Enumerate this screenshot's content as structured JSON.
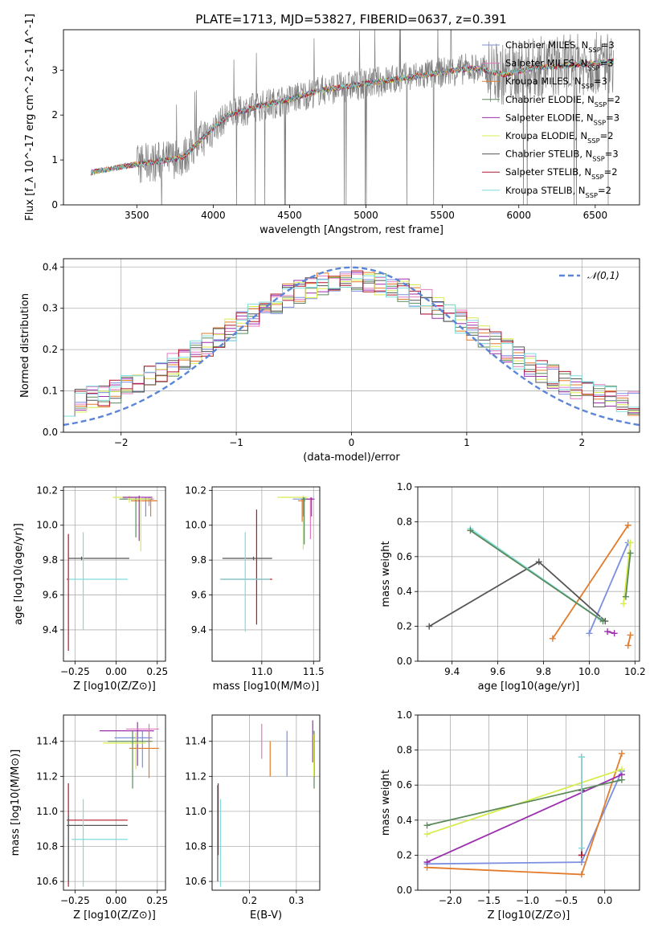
{
  "figure_title": "PLATE=1713, MJD=53827, FIBERID=0637, z=0.391",
  "colors": {
    "Chabrier MILES": "#7b8fe0",
    "Salpeter MILES": "#e377c2",
    "Kroupa MILES": "#e37b2b",
    "Chabrier ELODIE": "#5a8a5a",
    "Salpeter ELODIE": "#9b2fae",
    "Kroupa ELODIE": "#d7ec4e",
    "Chabrier STELIB": "#555555",
    "Salpeter STELIB": "#b2182b",
    "Kroupa STELIB": "#7fdcdc",
    "data": "#808080",
    "normal": "#5b86d8"
  },
  "chart_data": [
    {
      "id": "spectrum",
      "type": "line",
      "xlabel": "wavelength [Angstrom, rest frame]",
      "ylabel": "Flux [f_λ 10^-17 erg cm^-2 s^-1 A^-1]",
      "xlim": [
        3020,
        6790
      ],
      "ylim": [
        0,
        3.9
      ],
      "xticks": [
        3500,
        4000,
        4500,
        5000,
        5500,
        6000,
        6500
      ],
      "yticks": [
        0,
        1,
        2,
        3
      ],
      "grid": false,
      "legend_position": "top-right",
      "legend": [
        {
          "model": "Chabrier MILES",
          "n_ssp": "3"
        },
        {
          "model": "Salpeter MILES",
          "n_ssp": "3"
        },
        {
          "model": "Kroupa MILES",
          "n_ssp": "3"
        },
        {
          "model": "Chabrier ELODIE",
          "n_ssp": "2"
        },
        {
          "model": "Salpeter ELODIE",
          "n_ssp": "3"
        },
        {
          "model": "Kroupa ELODIE",
          "n_ssp": "2"
        },
        {
          "model": "Chabrier STELIB",
          "n_ssp": "3"
        },
        {
          "model": "Salpeter STELIB",
          "n_ssp": "2"
        },
        {
          "model": "Kroupa STELIB",
          "n_ssp": "2"
        }
      ],
      "continuum": {
        "x": [
          3200,
          3400,
          3600,
          3800,
          3950,
          4100,
          4300,
          4500,
          4700,
          4900,
          5100,
          5300,
          5500,
          5700,
          5900,
          6100,
          6300,
          6500,
          6620
        ],
        "y": [
          0.72,
          0.85,
          0.95,
          1.05,
          1.55,
          2.0,
          2.2,
          2.35,
          2.55,
          2.65,
          2.75,
          2.85,
          2.95,
          3.05,
          2.9,
          3.05,
          3.1,
          3.15,
          3.2
        ]
      },
      "data_noise_start": 3500,
      "data_range": [
        3200,
        6620
      ]
    },
    {
      "id": "residuals",
      "type": "step",
      "xlabel": "(data-model)/error",
      "ylabel": "Normed distribution",
      "xlim": [
        -2.5,
        2.5
      ],
      "ylim": [
        0,
        0.42
      ],
      "xticks": [
        -2,
        -1,
        0,
        1,
        2
      ],
      "yticks": [
        0.0,
        0.1,
        0.2,
        0.3,
        0.4
      ],
      "grid": true,
      "legend_position": "top-right",
      "legend": [
        {
          "label": "𝒩(0,1)"
        }
      ],
      "bin_edges": [
        -2.5,
        2.5
      ],
      "n_bins": 50
    },
    {
      "id": "age-Z",
      "type": "scatter",
      "xlabel": "Z [log10(Z/Z⊙)]",
      "ylabel": "age [log10(age/yr)]",
      "xlim": [
        -0.32,
        0.3
      ],
      "ylim": [
        9.22,
        10.22
      ],
      "xticks": [
        -0.25,
        0.0,
        0.25
      ],
      "yticks": [
        9.4,
        9.6,
        9.8,
        10.0,
        10.2
      ],
      "grid": true,
      "points": [
        {
          "model": "Kroupa ELODIE",
          "x": 0.08,
          "y": 10.16,
          "xerr": [
            0.1,
            0.03
          ],
          "yerr": [
            0.03,
            0.01
          ]
        },
        {
          "model": "Chabrier MILES",
          "x": 0.18,
          "y": 10.15,
          "xerr": [
            0.14,
            0.04
          ],
          "yerr": [
            0.1,
            0.01
          ]
        },
        {
          "model": "Salpeter MILES",
          "x": 0.2,
          "y": 10.15,
          "xerr": [
            0.1,
            0.03
          ],
          "yerr": [
            0.04,
            0.01
          ]
        },
        {
          "model": "Kroupa MILES",
          "x": 0.21,
          "y": 10.14,
          "xerr": [
            0.12,
            0.04
          ],
          "yerr": [
            0.09,
            0.01
          ]
        },
        {
          "model": "Chabrier ELODIE",
          "x": 0.12,
          "y": 10.15,
          "xerr": [
            0.1,
            0.1
          ],
          "yerr": [
            0.22,
            0.01
          ]
        },
        {
          "model": "Salpeter ELODIE",
          "x": 0.14,
          "y": 10.16,
          "xerr": [
            0.1,
            0.08
          ],
          "yerr": [
            0.25,
            0.01
          ]
        },
        {
          "model": "Kroupa ELODIE",
          "x": 0.15,
          "y": 10.15,
          "xerr": [
            0.08,
            0.06
          ],
          "yerr": [
            0.3,
            0.01
          ]
        },
        {
          "model": "Chabrier STELIB",
          "x": -0.21,
          "y": 9.81,
          "xerr": [
            0.08,
            0.29
          ],
          "yerr": [
            0.01,
            0.01
          ]
        },
        {
          "model": "Salpeter STELIB",
          "x": -0.29,
          "y": 9.69,
          "xerr": [
            0.01,
            0.01
          ],
          "yerr": [
            0.41,
            0.26
          ]
        },
        {
          "model": "Kroupa STELIB",
          "x": -0.2,
          "y": 9.69,
          "xerr": [
            0.09,
            0.27
          ],
          "yerr": [
            0.29,
            0.27
          ]
        }
      ]
    },
    {
      "id": "age-mass",
      "type": "scatter",
      "xlabel": "mass [log10(M/M⊙)]",
      "ylabel": "",
      "xlim": [
        10.52,
        11.56
      ],
      "ylim": [
        9.22,
        10.22
      ],
      "xticks": [
        11.0,
        11.5
      ],
      "yticks": [
        9.4,
        9.6,
        9.8,
        10.0,
        10.2
      ],
      "grid": true,
      "points": [
        {
          "model": "Kroupa ELODIE",
          "x": 11.4,
          "y": 10.16,
          "xerr": [
            0.25,
            0.04
          ],
          "yerr": [
            0.3,
            0.01
          ]
        },
        {
          "model": "Chabrier MILES",
          "x": 11.4,
          "y": 10.15,
          "xerr": [
            0.1,
            0.04
          ],
          "yerr": [
            0.1,
            0.01
          ]
        },
        {
          "model": "Salpeter MILES",
          "x": 11.47,
          "y": 10.15,
          "xerr": [
            0.04,
            0.03
          ],
          "yerr": [
            0.23,
            0.01
          ]
        },
        {
          "model": "Kroupa MILES",
          "x": 11.39,
          "y": 10.14,
          "xerr": [
            0.04,
            0.03
          ],
          "yerr": [
            0.12,
            0.01
          ]
        },
        {
          "model": "Chabrier ELODIE",
          "x": 11.41,
          "y": 10.15,
          "xerr": [
            0.03,
            0.04
          ],
          "yerr": [
            0.26,
            0.01
          ]
        },
        {
          "model": "Salpeter ELODIE",
          "x": 11.48,
          "y": 10.15,
          "xerr": [
            0.05,
            0.03
          ],
          "yerr": [
            0.1,
            0.01
          ]
        },
        {
          "model": "Chabrier STELIB",
          "x": 10.92,
          "y": 9.81,
          "xerr": [
            0.3,
            0.18
          ],
          "yerr": [
            0.01,
            0.01
          ]
        },
        {
          "model": "Salpeter STELIB",
          "x": 10.95,
          "y": 9.69,
          "xerr": [
            0.35,
            0.15
          ],
          "yerr": [
            0.26,
            0.4
          ]
        },
        {
          "model": "Kroupa STELIB",
          "x": 10.84,
          "y": 9.69,
          "xerr": [
            0.24,
            0.24
          ],
          "yerr": [
            0.3,
            0.27
          ]
        }
      ]
    },
    {
      "id": "weight-age",
      "type": "line",
      "xlabel": "age [log10(age/yr)]",
      "ylabel": "mass weight",
      "xlim": [
        9.25,
        10.22
      ],
      "ylim": [
        0.0,
        1.0
      ],
      "xticks": [
        9.4,
        9.6,
        9.8,
        10.0,
        10.2
      ],
      "yticks": [
        0.0,
        0.2,
        0.4,
        0.6,
        0.8,
        1.0
      ],
      "grid": true,
      "series": [
        {
          "model": "Chabrier MILES",
          "x": [
            10.0,
            10.17
          ],
          "y": [
            0.16,
            0.68
          ]
        },
        {
          "model": "Kroupa MILES",
          "x": [
            9.84,
            10.17
          ],
          "y": [
            0.13,
            0.78
          ]
        },
        {
          "model": "Kroupa MILES",
          "x": [
            10.17,
            10.18
          ],
          "y": [
            0.09,
            0.15
          ]
        },
        {
          "model": "Salpeter ELODIE",
          "x": [
            10.08,
            10.11
          ],
          "y": [
            0.17,
            0.16
          ]
        },
        {
          "model": "Kroupa ELODIE",
          "x": [
            10.15,
            10.18
          ],
          "y": [
            0.33,
            0.68
          ]
        },
        {
          "model": "Chabrier ELODIE",
          "x": [
            10.16,
            10.18
          ],
          "y": [
            0.37,
            0.62
          ]
        },
        {
          "model": "Chabrier STELIB",
          "x": [
            9.3,
            9.78,
            10.07
          ],
          "y": [
            0.2,
            0.57,
            0.23
          ]
        },
        {
          "model": "Kroupa STELIB",
          "x": [
            9.48,
            10.05
          ],
          "y": [
            0.76,
            0.24
          ]
        },
        {
          "model": "Chabrier ELODIE",
          "x": [
            9.48,
            10.06
          ],
          "y": [
            0.75,
            0.23
          ]
        }
      ]
    },
    {
      "id": "mass-Z",
      "type": "scatter",
      "xlabel": "Z [log10(Z/Z⊙)]",
      "ylabel": "mass [log10(M/M⊙)]",
      "xlim": [
        -0.32,
        0.3
      ],
      "ylim": [
        10.55,
        11.55
      ],
      "xticks": [
        -0.25,
        0.0,
        0.25
      ],
      "yticks": [
        10.6,
        10.8,
        11.0,
        11.2,
        11.4
      ],
      "grid": true,
      "points": [
        {
          "model": "Salpeter ELODIE",
          "x": 0.13,
          "y": 11.46,
          "xerr": [
            0.23,
            0.1
          ],
          "yerr": [
            0.2,
            0.05
          ]
        },
        {
          "model": "Salpeter MILES",
          "x": 0.2,
          "y": 11.47,
          "xerr": [
            0.14,
            0.06
          ],
          "yerr": [
            0.08,
            0.03
          ]
        },
        {
          "model": "Chabrier MILES",
          "x": 0.16,
          "y": 11.42,
          "xerr": [
            0.17,
            0.06
          ],
          "yerr": [
            0.17,
            0.04
          ]
        },
        {
          "model": "Kroupa ELODIE",
          "x": 0.12,
          "y": 11.39,
          "xerr": [
            0.2,
            0.06
          ],
          "yerr": [
            0.15,
            0.06
          ]
        },
        {
          "model": "Chabrier ELODIE",
          "x": 0.1,
          "y": 11.4,
          "xerr": [
            0.15,
            0.12
          ],
          "yerr": [
            0.27,
            0.06
          ]
        },
        {
          "model": "Kroupa MILES",
          "x": 0.2,
          "y": 11.36,
          "xerr": [
            0.12,
            0.06
          ],
          "yerr": [
            0.17,
            0.1
          ]
        },
        {
          "model": "Salpeter STELIB",
          "x": -0.29,
          "y": 10.95,
          "xerr": [
            0.01,
            0.36
          ],
          "yerr": [
            0.38,
            0.21
          ]
        },
        {
          "model": "Chabrier STELIB",
          "x": -0.29,
          "y": 10.92,
          "xerr": [
            0.01,
            0.36
          ],
          "yerr": [
            0.32,
            0.06
          ]
        },
        {
          "model": "Kroupa STELIB",
          "x": -0.2,
          "y": 10.84,
          "xerr": [
            0.07,
            0.27
          ],
          "yerr": [
            0.27,
            0.23
          ]
        }
      ]
    },
    {
      "id": "mass-ebv",
      "type": "scatter",
      "xlabel": "E(B-V)",
      "ylabel": "",
      "xlim": [
        0.12,
        0.35
      ],
      "ylim": [
        10.55,
        11.55
      ],
      "xticks": [
        0.2,
        0.3
      ],
      "yticks": [
        10.6,
        10.8,
        11.0,
        11.2,
        11.4
      ],
      "grid": true,
      "points": [
        {
          "model": "Salpeter MILES",
          "x": 0.226,
          "y": 11.4,
          "yerr": [
            0.1,
            0.1
          ]
        },
        {
          "model": "Kroupa MILES",
          "x": 0.244,
          "y": 11.3,
          "yerr": [
            0.1,
            0.1
          ]
        },
        {
          "model": "Chabrier MILES",
          "x": 0.28,
          "y": 11.33,
          "yerr": [
            0.13,
            0.13
          ]
        },
        {
          "model": "Salpeter ELODIE",
          "x": 0.335,
          "y": 11.4,
          "yerr": [
            0.12,
            0.12
          ]
        },
        {
          "model": "Chabrier ELODIE",
          "x": 0.338,
          "y": 11.3,
          "yerr": [
            0.17,
            0.16
          ]
        },
        {
          "model": "Kroupa ELODIE",
          "x": 0.337,
          "y": 11.32,
          "yerr": [
            0.12,
            0.12
          ]
        },
        {
          "model": "Chabrier STELIB",
          "x": 0.132,
          "y": 10.92,
          "yerr": [
            0.32,
            0.23
          ]
        },
        {
          "model": "Salpeter STELIB",
          "x": 0.133,
          "y": 10.95,
          "yerr": [
            0.2,
            0.21
          ]
        },
        {
          "model": "Kroupa STELIB",
          "x": 0.138,
          "y": 10.84,
          "yerr": [
            0.27,
            0.23
          ]
        }
      ]
    },
    {
      "id": "weight-Z",
      "type": "line",
      "xlabel": "Z [log10(Z/Z⊙)]",
      "ylabel": "mass weight",
      "xlim": [
        -2.42,
        0.45
      ],
      "ylim": [
        0.0,
        1.0
      ],
      "xticks": [
        -2.0,
        -1.5,
        -1.0,
        -0.5,
        0.0
      ],
      "yticks": [
        0.0,
        0.2,
        0.4,
        0.6,
        0.8,
        1.0
      ],
      "grid": true,
      "series": [
        {
          "model": "Chabrier MILES",
          "x": [
            -2.3,
            -0.3,
            0.22
          ],
          "y": [
            0.15,
            0.16,
            0.68
          ]
        },
        {
          "model": "Kroupa MILES",
          "x": [
            -2.3,
            -0.3,
            0.22
          ],
          "y": [
            0.13,
            0.09,
            0.78
          ]
        },
        {
          "model": "Salpeter ELODIE",
          "x": [
            -2.3,
            0.22
          ],
          "y": [
            0.16,
            0.66
          ]
        },
        {
          "model": "Kroupa ELODIE",
          "x": [
            -2.3,
            0.22
          ],
          "y": [
            0.32,
            0.69
          ]
        },
        {
          "model": "Chabrier ELODIE",
          "x": [
            -2.3,
            0.22
          ],
          "y": [
            0.37,
            0.63
          ]
        },
        {
          "model": "Chabrier STELIB",
          "x": [
            -0.3,
            -0.3
          ],
          "y": [
            0.2,
            0.57
          ]
        },
        {
          "model": "Salpeter STELIB",
          "x": [
            -0.3,
            -0.3
          ],
          "y": [
            0.2,
            0.76
          ]
        },
        {
          "model": "Kroupa STELIB",
          "x": [
            -0.3,
            -0.3
          ],
          "y": [
            0.24,
            0.76
          ]
        }
      ]
    }
  ]
}
